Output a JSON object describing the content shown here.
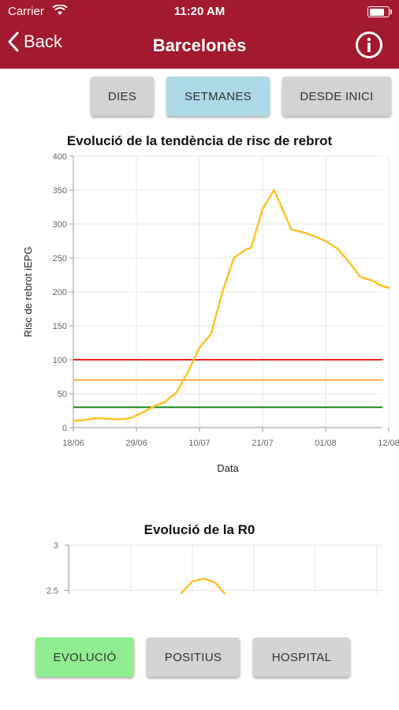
{
  "status_bar": {
    "carrier": "Carrier",
    "time": "11:20 AM",
    "battery_level": 0.9
  },
  "nav": {
    "back_label": "Back",
    "title": "Barcelonès"
  },
  "period_tabs": [
    {
      "label": "DIES",
      "selected": false
    },
    {
      "label": "SETMANES",
      "selected": true
    },
    {
      "label": "DESDE INICI",
      "selected": false
    }
  ],
  "bottom_tabs": [
    {
      "label": "EVOLUCIÓ",
      "selected": true
    },
    {
      "label": "POSITIUS",
      "selected": false
    },
    {
      "label": "HOSPITAL",
      "selected": false
    }
  ],
  "colors": {
    "header": "#a3192e",
    "selected_top": "#add8e6",
    "selected_bottom": "#90ee90",
    "unselected": "#d3d3d3",
    "line": "#ffc125"
  },
  "chart_data": [
    {
      "type": "line",
      "title": "Evolució de la tendència de risc de rebrot",
      "xlabel": "Data",
      "ylabel": "Risc de rebrot iEPG",
      "ylim": [
        0,
        400
      ],
      "yticks": [
        "0",
        "50",
        "100",
        "150",
        "200",
        "250",
        "300",
        "350",
        "400"
      ],
      "xticks": [
        "18/06",
        "29/06",
        "10/07",
        "21/07",
        "01/08",
        "12/08"
      ],
      "grid": true,
      "series": [
        {
          "x": [
            "18/06",
            "20/06",
            "22/06",
            "24/06",
            "26/06",
            "28/06",
            "30/06",
            "02/07",
            "04/07",
            "06/07",
            "08/07",
            "10/07",
            "12/07",
            "14/07",
            "16/07",
            "18/07",
            "19/07",
            "21/07",
            "23/07",
            "25/07",
            "26/07",
            "28/07",
            "30/07",
            "01/08",
            "03/08",
            "05/08",
            "07/08",
            "09/08",
            "11/08",
            "12/08"
          ],
          "values": [
            10,
            11,
            14,
            13,
            12,
            14,
            22,
            31,
            38,
            52,
            82,
            118,
            138,
            200,
            250,
            262,
            265,
            322,
            350,
            312,
            292,
            288,
            282,
            275,
            264,
            245,
            222,
            217,
            208,
            206
          ],
          "color": "#ffc125"
        }
      ],
      "thresholds": [
        {
          "value": 100,
          "color": "#ee2222"
        },
        {
          "value": 70,
          "color": "#ffa94d"
        },
        {
          "value": 30,
          "color": "#1a8a1a"
        }
      ]
    },
    {
      "type": "line",
      "title": "Evolució de la R0",
      "ylim": [
        0,
        3
      ],
      "yticks": [
        "2.5",
        "3"
      ],
      "grid": true,
      "series": [
        {
          "x": [
            "08/07",
            "10/07",
            "12/07",
            "14/07",
            "16/07"
          ],
          "values": [
            2.47,
            2.6,
            2.63,
            2.59,
            2.45
          ],
          "color": "#ffc125"
        }
      ]
    }
  ]
}
